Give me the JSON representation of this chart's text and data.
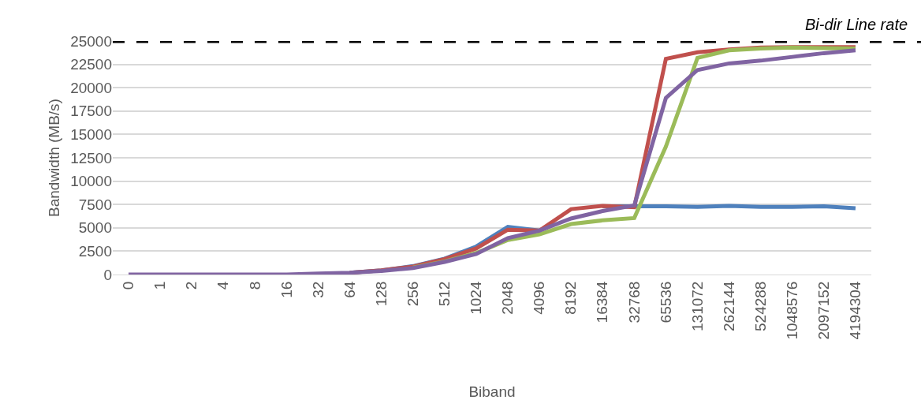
{
  "chart_data": {
    "type": "line",
    "xlabel": "Biband",
    "ylabel": "Bandwidth (MB/s)",
    "categories": [
      "0",
      "1",
      "2",
      "4",
      "8",
      "16",
      "32",
      "64",
      "128",
      "256",
      "512",
      "1024",
      "2048",
      "4096",
      "8192",
      "16384",
      "32768",
      "65536",
      "131072",
      "262144",
      "524288",
      "1048576",
      "2097152",
      "4194304"
    ],
    "series": [
      {
        "color": "#4f81bd",
        "values": [
          null,
          null,
          null,
          null,
          null,
          null,
          null,
          200,
          450,
          900,
          1700,
          3000,
          5100,
          4700,
          null,
          7300,
          7300,
          7300,
          7250,
          7350,
          7250,
          7250,
          7300,
          7100
        ]
      },
      {
        "color": "#c0504d",
        "values": [
          null,
          null,
          null,
          null,
          null,
          null,
          null,
          200,
          450,
          850,
          1650,
          2800,
          4800,
          4700,
          7000,
          7350,
          7200,
          23100,
          23800,
          24100,
          24300,
          24350,
          24350,
          24350
        ]
      },
      {
        "color": "#9bbb59",
        "values": [
          null,
          null,
          null,
          null,
          null,
          null,
          null,
          null,
          null,
          750,
          1400,
          2300,
          3700,
          4300,
          5400,
          5800,
          6050,
          13700,
          23200,
          24000,
          24200,
          24300,
          24250,
          24200
        ]
      },
      {
        "color": "#8064a2",
        "values": [
          0,
          0,
          0,
          0,
          0,
          0,
          100,
          200,
          380,
          700,
          1350,
          2200,
          3900,
          4700,
          6000,
          6800,
          7400,
          18900,
          21900,
          22600,
          22900,
          23300,
          23700,
          24000
        ]
      }
    ],
    "ylim": [
      0,
      25000
    ],
    "yticks": [
      0,
      2500,
      5000,
      7500,
      10000,
      12500,
      15000,
      17500,
      20000,
      22500,
      25000
    ],
    "ref_lines": [
      {
        "axis": "y",
        "value": 25000,
        "label": "Bi-dir Line rate",
        "color": "#000000",
        "line_style": "dashed"
      }
    ],
    "grid": "y",
    "marker": "none",
    "line_style": "solid"
  }
}
